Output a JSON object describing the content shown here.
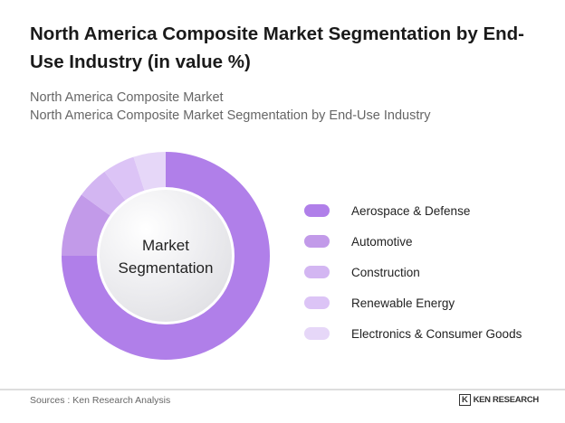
{
  "title": "North America Composite Market Segmentation by End-Use Industry (in value %)",
  "subtitle1": "North America Composite Market",
  "subtitle2": "North America Composite Market Segmentation by End-Use Industry",
  "footer": {
    "source": "Sources : Ken Research Analysis",
    "logo": "KEN RESEARCH"
  },
  "chart_data": {
    "type": "pie",
    "donut": true,
    "center_label": [
      "Market",
      "Segmentation"
    ],
    "categories": [
      "Aerospace & Defense",
      "Automotive",
      "Construction",
      "Renewable Energy",
      "Electronics & Consumer Goods"
    ],
    "values": [
      75,
      10,
      5,
      5,
      5
    ],
    "colors": [
      "#b07fe9",
      "#c29ae9",
      "#d3b6f2",
      "#dcc4f6",
      "#e6d7f8"
    ],
    "legend_position": "right"
  }
}
